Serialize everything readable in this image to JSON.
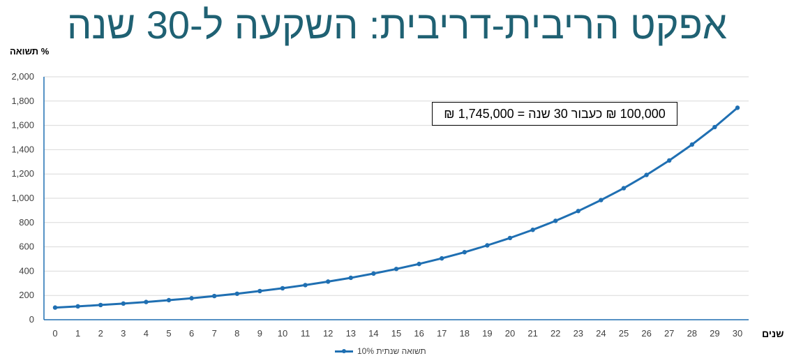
{
  "title": "אפקט הריבית-דריבית: השקעה ל-30 שנה",
  "chart_data": {
    "type": "line",
    "ylabel": "% תשואה",
    "xlabel": "שנים",
    "x": [
      0,
      1,
      2,
      3,
      4,
      5,
      6,
      7,
      8,
      9,
      10,
      11,
      12,
      13,
      14,
      15,
      16,
      17,
      18,
      19,
      20,
      21,
      22,
      23,
      24,
      25,
      26,
      27,
      28,
      29,
      30
    ],
    "series": [
      {
        "name": "תשואה שנתית 10%",
        "color": "#1f6fb2",
        "values": [
          100,
          110,
          121,
          133,
          146,
          161,
          177,
          195,
          214,
          236,
          259,
          285,
          314,
          345,
          380,
          418,
          459,
          505,
          556,
          612,
          673,
          740,
          814,
          895,
          985,
          1083,
          1192,
          1311,
          1442,
          1586,
          1745
        ]
      }
    ],
    "ylim": [
      0,
      2000
    ],
    "yticks": [
      "0",
      "200",
      "400",
      "600",
      "800",
      "1,000",
      "1,200",
      "1,400",
      "1,600",
      "1,800",
      "2,000"
    ],
    "grid": true,
    "legend_position": "bottom",
    "annotation": "100,000 ₪ כעבור 30 שנה = 1,745,000 ₪"
  }
}
